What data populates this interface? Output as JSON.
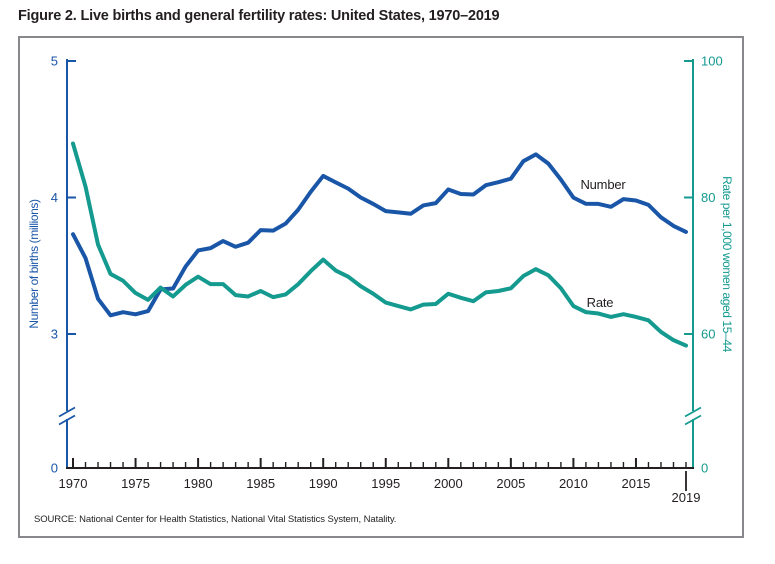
{
  "figure": {
    "title": "Figure 2. Live births and general fertility rates: United States, 1970–2019",
    "source": "SOURCE: National Center for Health Statistics, National Vital Statistics System, Natality."
  },
  "colors": {
    "number_line": "#1a56a7",
    "rate_line": "#149a8f",
    "text": "#231f20",
    "x_axis": "#231f20",
    "frame_border": "#87888c",
    "background": "#ffffff"
  },
  "chart_data": {
    "type": "line",
    "title": "Figure 2. Live births and general fertility rates: United States, 1970–2019",
    "xlabel": "",
    "grid": false,
    "legend_position": "inline-labels",
    "x": [
      1970,
      1971,
      1972,
      1973,
      1974,
      1975,
      1976,
      1977,
      1978,
      1979,
      1980,
      1981,
      1982,
      1983,
      1984,
      1985,
      1986,
      1987,
      1988,
      1989,
      1990,
      1991,
      1992,
      1993,
      1994,
      1995,
      1996,
      1997,
      1998,
      1999,
      2000,
      2001,
      2002,
      2003,
      2004,
      2005,
      2006,
      2007,
      2008,
      2009,
      2010,
      2011,
      2012,
      2013,
      2014,
      2015,
      2016,
      2017,
      2018,
      2019
    ],
    "series": [
      {
        "name": "Number",
        "label": "Number",
        "axis": "left",
        "color": "#1a56a7",
        "values": [
          3.731,
          3.556,
          3.258,
          3.137,
          3.16,
          3.144,
          3.168,
          3.327,
          3.333,
          3.494,
          3.612,
          3.629,
          3.681,
          3.639,
          3.669,
          3.761,
          3.757,
          3.809,
          3.91,
          4.041,
          4.158,
          4.111,
          4.065,
          4.0,
          3.953,
          3.9,
          3.891,
          3.881,
          3.942,
          3.959,
          4.059,
          4.026,
          4.022,
          4.09,
          4.112,
          4.138,
          4.266,
          4.316,
          4.248,
          4.131,
          3.999,
          3.954,
          3.953,
          3.932,
          3.988,
          3.978,
          3.946,
          3.855,
          3.792,
          3.748
        ]
      },
      {
        "name": "Rate",
        "label": "Rate",
        "axis": "right",
        "color": "#149a8f",
        "values": [
          87.9,
          81.6,
          73.1,
          68.8,
          67.8,
          66.0,
          65.0,
          66.8,
          65.5,
          67.2,
          68.4,
          67.3,
          67.3,
          65.7,
          65.5,
          66.3,
          65.4,
          65.8,
          67.3,
          69.2,
          70.9,
          69.3,
          68.4,
          67.0,
          65.9,
          64.6,
          64.1,
          63.6,
          64.3,
          64.4,
          65.9,
          65.3,
          64.8,
          66.1,
          66.3,
          66.7,
          68.5,
          69.5,
          68.6,
          66.7,
          64.1,
          63.2,
          63.0,
          62.5,
          62.9,
          62.5,
          62.0,
          60.3,
          59.1,
          58.3
        ]
      }
    ],
    "axes": {
      "left": {
        "label": "Number of births (millions)",
        "color": "#1a56a7",
        "ticks": [
          5,
          4,
          3,
          0
        ],
        "visible_range": [
          3,
          5
        ],
        "full_range": [
          0,
          5
        ],
        "axis_break": true
      },
      "right": {
        "label": "Rate per 1,000 women aged 15–44",
        "color": "#149a8f",
        "ticks": [
          100,
          80,
          60,
          0
        ],
        "visible_range": [
          60,
          100
        ],
        "full_range": [
          0,
          100
        ],
        "axis_break": true
      },
      "x": {
        "range": [
          1970,
          2019
        ],
        "major_ticks": [
          1970,
          1975,
          1980,
          1985,
          1990,
          1995,
          2000,
          2005,
          2010,
          2015
        ],
        "minor_step": 1,
        "end_year_label": "2019",
        "color": "#231f20"
      }
    }
  }
}
